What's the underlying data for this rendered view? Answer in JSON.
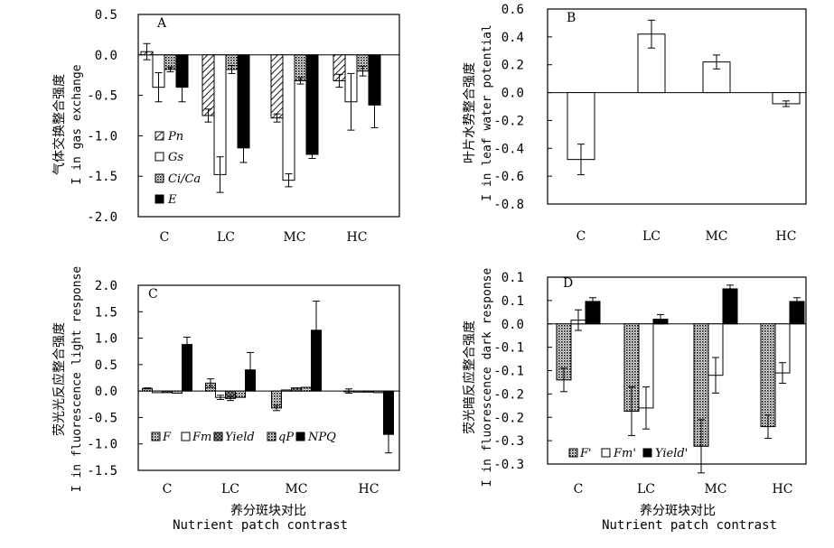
{
  "chart_data": [
    {
      "panel": "A",
      "type": "bar",
      "ylabel_cn": "气体交换整合强度",
      "ylabel_en": "I in gas exchange",
      "xlabel_cn": "",
      "xlabel_en": "",
      "ylim": [
        -2.0,
        0.5
      ],
      "yticks": [
        "0.5",
        "0.0",
        "-0.5",
        "-1.0",
        "-1.5",
        "-2.0"
      ],
      "categories": [
        "C",
        "LC",
        "MC",
        "HC"
      ],
      "series": [
        {
          "name": "Pn",
          "pattern": "hatch",
          "values": [
            0.04,
            -0.75,
            -0.78,
            -0.32
          ],
          "errors": [
            0.1,
            0.08,
            0.05,
            0.08
          ]
        },
        {
          "name": "Gs",
          "pattern": "white",
          "values": [
            -0.4,
            -1.48,
            -1.55,
            -0.58
          ],
          "errors": [
            0.18,
            0.22,
            0.08,
            0.35
          ]
        },
        {
          "name": "Ci/Ca",
          "pattern": "dots",
          "values": [
            -0.18,
            -0.18,
            -0.32,
            -0.2
          ],
          "errors": [
            0.03,
            0.05,
            0.04,
            0.06
          ]
        },
        {
          "name": "E",
          "pattern": "black",
          "values": [
            -0.4,
            -1.15,
            -1.23,
            -0.62
          ],
          "errors": [
            0.18,
            0.18,
            0.05,
            0.28
          ]
        }
      ]
    },
    {
      "panel": "B",
      "type": "bar",
      "ylabel_cn": "叶片水势整合强度",
      "ylabel_en": "I in leaf water potential",
      "xlabel_cn": "",
      "xlabel_en": "",
      "ylim": [
        -0.8,
        0.6
      ],
      "yticks": [
        "0.6",
        "0.4",
        "0.2",
        "0.0",
        "-0.2",
        "-0.4",
        "-0.6",
        "-0.8"
      ],
      "categories": [
        "C",
        "LC",
        "MC",
        "HC"
      ],
      "series": [
        {
          "name": "",
          "pattern": "white",
          "values": [
            -0.48,
            0.42,
            0.22,
            -0.08
          ],
          "errors": [
            0.11,
            0.1,
            0.05,
            0.02
          ]
        }
      ]
    },
    {
      "panel": "C",
      "type": "bar",
      "ylabel_cn": "荧光光反应整合强度",
      "ylabel_en": "I in fluorescence light response",
      "xlabel_cn": "养分斑块对比",
      "xlabel_en": "Nutrient patch contrast",
      "ylim": [
        -1.5,
        2.0
      ],
      "yticks": [
        "2.0",
        "1.5",
        "1.0",
        "0.5",
        "0.0",
        "-0.5",
        "-1.0",
        "-1.5"
      ],
      "categories": [
        "C",
        "LC",
        "MC",
        "HC"
      ],
      "series": [
        {
          "name": "F",
          "pattern": "dots",
          "values": [
            0.05,
            0.15,
            -0.32,
            0.0
          ],
          "errors": [
            0.01,
            0.08,
            0.05,
            0.04
          ]
        },
        {
          "name": "Fm",
          "pattern": "white",
          "values": [
            -0.03,
            -0.12,
            0.02,
            -0.02
          ],
          "errors": [
            0.0,
            0.04,
            0.0,
            0.0
          ]
        },
        {
          "name": "Yield",
          "pattern": "checker",
          "values": [
            -0.03,
            -0.14,
            0.06,
            -0.02
          ],
          "errors": [
            0.0,
            0.04,
            0.0,
            0.0
          ]
        },
        {
          "name": "qP",
          "pattern": "dots",
          "values": [
            -0.04,
            -0.12,
            0.07,
            -0.03
          ],
          "errors": [
            0.0,
            0.0,
            0.0,
            0.0
          ]
        },
        {
          "name": "NPQ",
          "pattern": "black",
          "values": [
            0.88,
            0.4,
            1.15,
            -0.82
          ],
          "errors": [
            0.14,
            0.33,
            0.55,
            0.35
          ]
        }
      ]
    },
    {
      "panel": "D",
      "type": "bar",
      "ylabel_cn": "荧光暗反应整合强度",
      "ylabel_en": "I in fluorescence dark response",
      "xlabel_cn": "养分斑块对比",
      "xlabel_en": "Nutrient patch contrast",
      "ylim": [
        -0.3,
        0.1
      ],
      "yticks": [
        "0.1",
        "0.1",
        "0.0",
        "-0.1",
        "-0.1",
        "-0.2",
        "-0.2",
        "-0.3",
        "-0.3"
      ],
      "categories": [
        "C",
        "LC",
        "MC",
        "HC"
      ],
      "series": [
        {
          "name": "F'",
          "pattern": "dots",
          "values": [
            -0.12,
            -0.187,
            -0.262,
            -0.22
          ],
          "errors": [
            0.025,
            0.052,
            0.057,
            0.025
          ]
        },
        {
          "name": "Fm'",
          "pattern": "white",
          "values": [
            0.008,
            -0.18,
            -0.11,
            -0.105
          ],
          "errors": [
            0.022,
            0.045,
            0.038,
            0.022
          ]
        },
        {
          "name": "Yield'",
          "pattern": "black",
          "values": [
            0.048,
            0.01,
            0.075,
            0.048
          ],
          "errors": [
            0.008,
            0.01,
            0.008,
            0.008
          ]
        }
      ]
    }
  ]
}
